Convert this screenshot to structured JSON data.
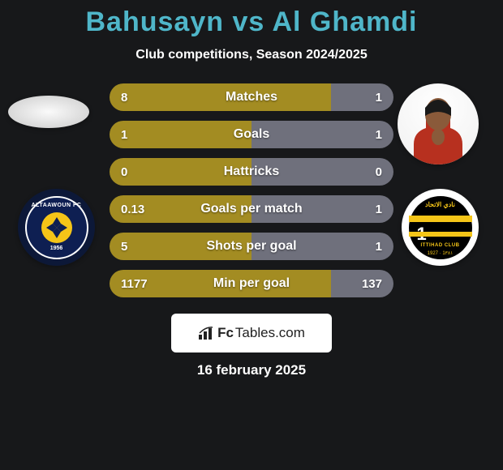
{
  "title_color": "#4fb6c9",
  "title_player1": "Bahusayn",
  "title_vs": "vs",
  "title_player2": "Al Ghamdi",
  "subtitle": "Club competitions, Season 2024/2025",
  "bar_left_color": "#a38c22",
  "bar_right_color": "#6f707c",
  "stats": [
    {
      "label": "Matches",
      "left_val": "8",
      "right_val": "1",
      "left_pct": 78
    },
    {
      "label": "Goals",
      "left_val": "1",
      "right_val": "1",
      "left_pct": 50
    },
    {
      "label": "Hattricks",
      "left_val": "0",
      "right_val": "0",
      "left_pct": 50
    },
    {
      "label": "Goals per match",
      "left_val": "0.13",
      "right_val": "1",
      "left_pct": 50
    },
    {
      "label": "Shots per goal",
      "left_val": "5",
      "right_val": "1",
      "left_pct": 50
    },
    {
      "label": "Min per goal",
      "left_val": "1177",
      "right_val": "137",
      "left_pct": 78
    }
  ],
  "club_left": {
    "name": "ALTAAWOUN FC",
    "year": "1956"
  },
  "club_right": {
    "arabic": "نادي الاتحاد",
    "en": "ITTIHAD CLUB",
    "year": "1927 · 1٣٨١"
  },
  "footer_brand_prefix": "Fc",
  "footer_brand_suffix": "Tables.com",
  "date": "16 february 2025"
}
